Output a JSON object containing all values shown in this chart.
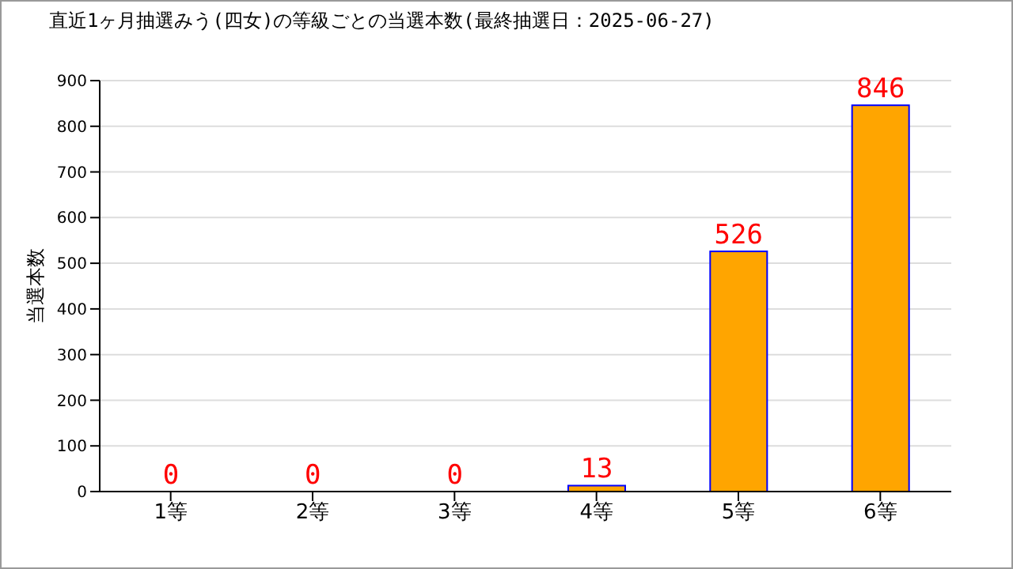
{
  "chart_data": {
    "type": "bar",
    "title": "直近1ヶ月抽選みう(四女)の等級ごとの当選本数(最終抽選日：2025-06-27)",
    "ylabel": "当選本数",
    "categories": [
      "1等",
      "2等",
      "3等",
      "4等",
      "5等",
      "6等"
    ],
    "values": [
      0,
      0,
      0,
      13,
      526,
      846
    ],
    "color": "#ffa500",
    "ylim": [
      0,
      900
    ],
    "yticks": [
      0,
      100,
      200,
      300,
      400,
      500,
      600,
      700,
      800,
      900
    ],
    "grid": "y",
    "data_labels": true
  }
}
